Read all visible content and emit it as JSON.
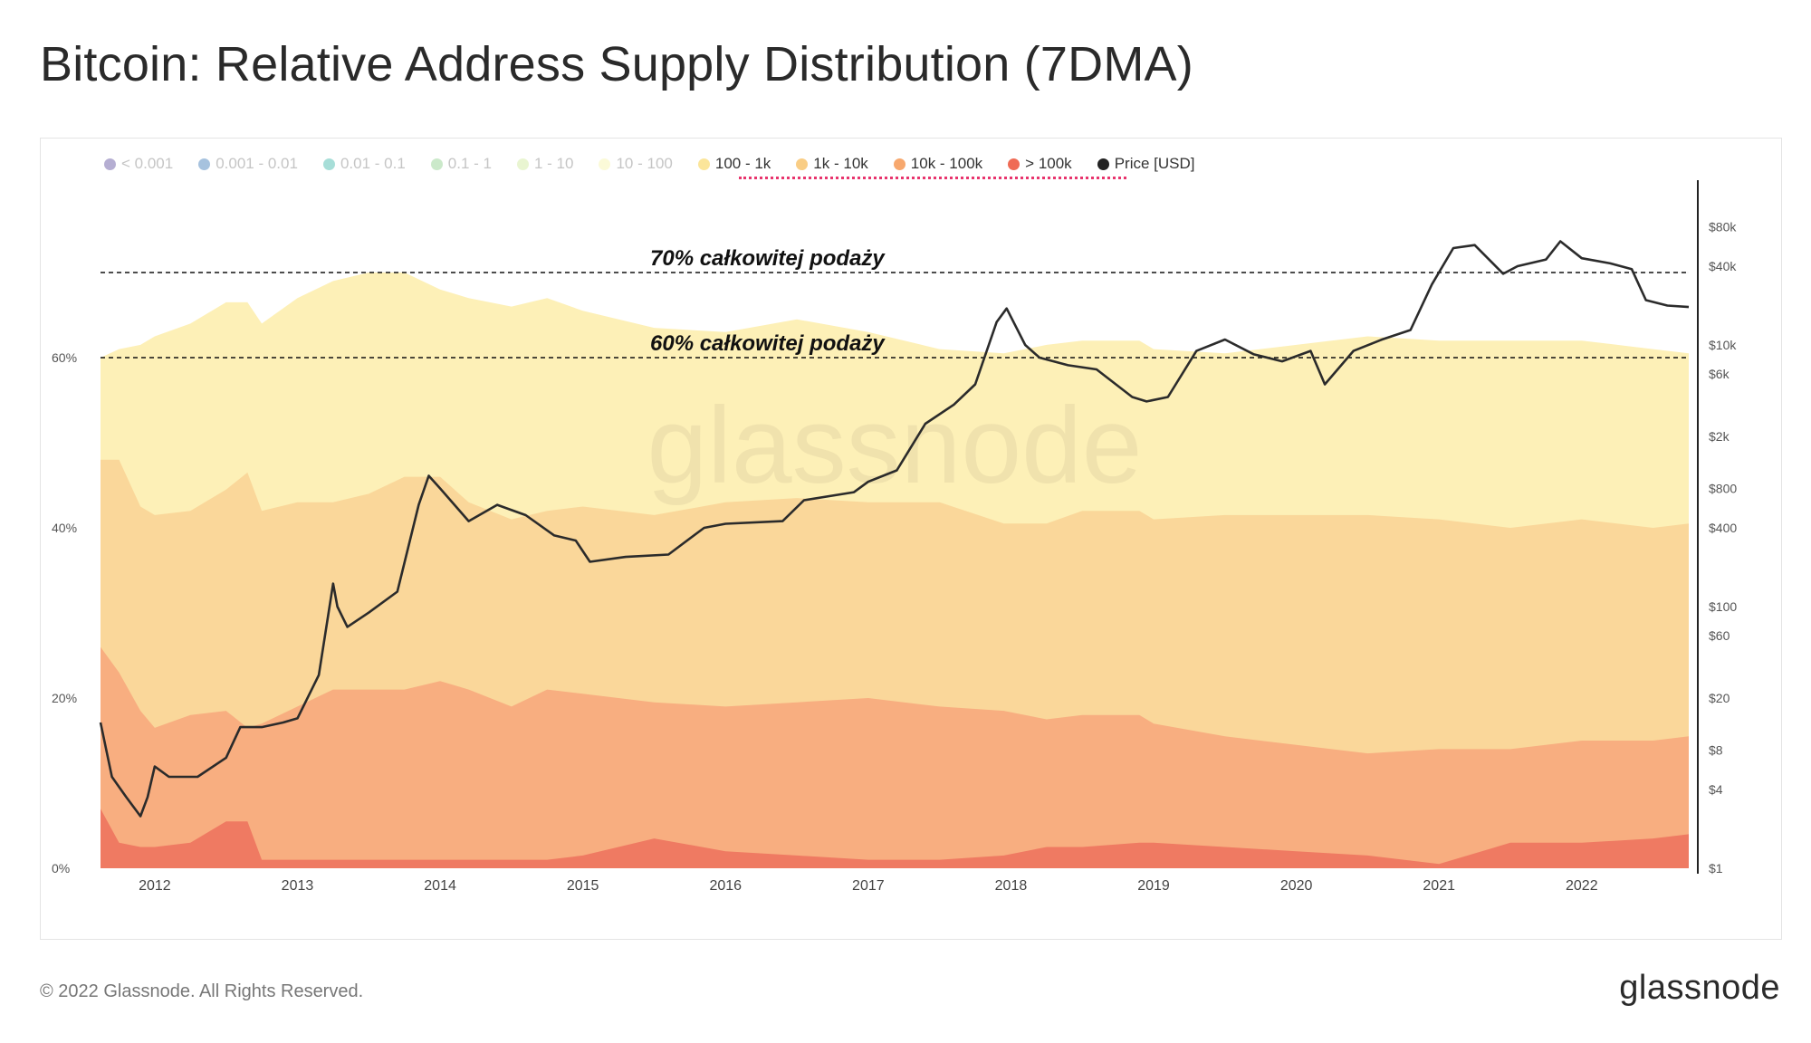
{
  "title": "Bitcoin: Relative Address Supply Distribution (7DMA)",
  "footer": "© 2022 Glassnode. All Rights Reserved.",
  "brand": "glassnode",
  "watermark": "glassnode",
  "legend": [
    {
      "label": "< 0.001",
      "color": "#5b4c9c",
      "active": false
    },
    {
      "label": "0.001 - 0.01",
      "color": "#3a78b6",
      "active": false
    },
    {
      "label": "0.01 - 0.1",
      "color": "#3cb5a8",
      "active": false
    },
    {
      "label": "0.1 - 1",
      "color": "#8ccf8a",
      "active": false
    },
    {
      "label": "1 - 10",
      "color": "#cfe89a",
      "active": false
    },
    {
      "label": "10 - 100",
      "color": "#f6f3a8",
      "active": false
    },
    {
      "label": "100 - 1k",
      "color": "#fbe59a",
      "active": true
    },
    {
      "label": "1k - 10k",
      "color": "#f9cd85",
      "active": true
    },
    {
      "label": "10k - 100k",
      "color": "#f7a86e",
      "active": true
    },
    {
      "label": "> 100k",
      "color": "#ef6b55",
      "active": true
    },
    {
      "label": "Price [USD]",
      "color": "#222222",
      "active": true
    }
  ],
  "annotations": {
    "line70": "70% całkowitej podaży",
    "line60": "60% całkowitej podaży"
  },
  "chart_data": {
    "type": "area",
    "stacked": true,
    "x_ticks": [
      "2012",
      "2013",
      "2014",
      "2015",
      "2016",
      "2017",
      "2018",
      "2019",
      "2020",
      "2021",
      "2022"
    ],
    "y_left_ticks": [
      "0%",
      "20%",
      "40%",
      "60%"
    ],
    "y_left_range": [
      0,
      80
    ],
    "y_right_scale": "log",
    "y_right_ticks": [
      "$1",
      "$4",
      "$8",
      "$20",
      "$60",
      "$100",
      "$400",
      "$800",
      "$2k",
      "$6k",
      "$10k",
      "$40k",
      "$80k"
    ],
    "y_right_range": [
      1,
      160000
    ],
    "reference_lines": [
      70,
      60
    ],
    "x_range": [
      2011.62,
      2022.75
    ],
    "x": [
      2011.62,
      2011.75,
      2011.9,
      2012.0,
      2012.25,
      2012.5,
      2012.65,
      2012.75,
      2013.0,
      2013.25,
      2013.5,
      2013.75,
      2014.0,
      2014.2,
      2014.5,
      2014.75,
      2015.0,
      2015.5,
      2016.0,
      2016.5,
      2017.0,
      2017.5,
      2017.95,
      2018.25,
      2018.5,
      2018.9,
      2019.0,
      2019.5,
      2020.0,
      2020.5,
      2021.0,
      2021.5,
      2022.0,
      2022.5,
      2022.75
    ],
    "series": [
      {
        "name": "> 100k",
        "color": "#ef7a62",
        "values": [
          7,
          3,
          2.5,
          2.5,
          3,
          5.5,
          5.5,
          1,
          1,
          1,
          1,
          1,
          1,
          1,
          1,
          1,
          1.5,
          3.5,
          2,
          1.5,
          1,
          1,
          1.5,
          2.5,
          2.5,
          3,
          3,
          2.5,
          2,
          1.5,
          0.5,
          3,
          3,
          3.5,
          4
        ]
      },
      {
        "name": "10k - 100k",
        "color": "#f8ae80",
        "values": [
          19,
          20,
          16,
          14,
          15,
          13,
          11,
          16,
          18,
          20,
          20,
          20,
          21,
          20,
          18,
          20,
          19,
          16,
          17,
          18,
          19,
          18,
          17,
          15,
          15.5,
          15,
          14,
          13,
          12.5,
          12,
          13.5,
          11,
          12,
          11.5,
          11.5
        ]
      },
      {
        "name": "1k - 10k",
        "color": "#fad79a",
        "values": [
          22,
          25,
          24,
          25,
          24,
          26,
          30,
          25,
          24,
          22,
          23,
          25,
          24,
          22,
          22,
          21,
          22,
          22,
          24,
          24,
          23,
          24,
          22,
          23,
          24,
          24,
          24,
          26,
          27,
          28,
          27,
          26,
          26,
          25,
          25
        ]
      },
      {
        "name": "100 - 1k",
        "color": "#fdf0b7",
        "values": [
          12,
          13,
          19,
          21,
          22,
          22,
          20,
          22,
          24,
          26,
          26,
          24,
          22,
          24,
          25,
          25,
          23,
          22,
          20,
          21,
          20,
          18,
          20,
          21,
          20,
          20,
          20,
          19,
          20,
          21,
          21,
          22,
          21,
          21,
          20
        ]
      }
    ],
    "price": {
      "name": "Price [USD]",
      "color": "#2b2b2b",
      "x": [
        2011.62,
        2011.7,
        2011.8,
        2011.9,
        2011.95,
        2012.0,
        2012.1,
        2012.3,
        2012.5,
        2012.6,
        2012.75,
        2012.9,
        2013.0,
        2013.15,
        2013.25,
        2013.28,
        2013.35,
        2013.5,
        2013.7,
        2013.85,
        2013.92,
        2014.0,
        2014.2,
        2014.4,
        2014.6,
        2014.8,
        2014.95,
        2015.05,
        2015.3,
        2015.6,
        2015.85,
        2016.0,
        2016.4,
        2016.55,
        2016.9,
        2017.0,
        2017.2,
        2017.4,
        2017.6,
        2017.75,
        2017.9,
        2017.97,
        2018.1,
        2018.2,
        2018.4,
        2018.6,
        2018.85,
        2018.95,
        2019.1,
        2019.3,
        2019.5,
        2019.7,
        2019.9,
        2020.1,
        2020.2,
        2020.4,
        2020.6,
        2020.8,
        2020.95,
        2021.1,
        2021.25,
        2021.45,
        2021.55,
        2021.75,
        2021.85,
        2022.0,
        2022.2,
        2022.35,
        2022.45,
        2022.6,
        2022.75
      ],
      "y": [
        13,
        5,
        3.5,
        2.5,
        3.5,
        6,
        5,
        5,
        7,
        12,
        12,
        13,
        14,
        30,
        150,
        100,
        70,
        90,
        130,
        600,
        1000,
        800,
        450,
        600,
        500,
        350,
        320,
        220,
        240,
        250,
        400,
        430,
        450,
        650,
        750,
        900,
        1100,
        2500,
        3500,
        5000,
        15000,
        19000,
        10000,
        8000,
        7000,
        6500,
        4000,
        3700,
        4000,
        9000,
        11000,
        8500,
        7500,
        9000,
        5000,
        9000,
        11000,
        13000,
        29000,
        55000,
        58000,
        35000,
        40000,
        45000,
        62000,
        46000,
        42000,
        38000,
        22000,
        20000,
        19500
      ]
    }
  }
}
